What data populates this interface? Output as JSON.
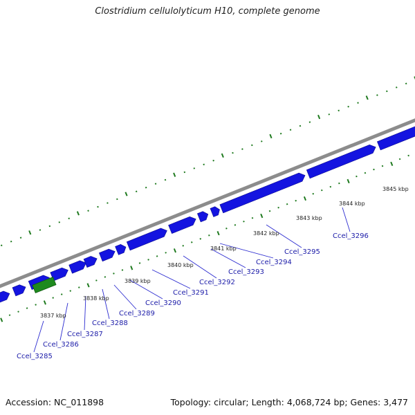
{
  "header": {
    "title": "Clostridium cellulolyticum H10, complete genome"
  },
  "footer": {
    "accession": "Accession: NC_011898",
    "stats": "Topology: circular; Length: 4,068,724 bp; Genes: 3,477"
  },
  "colors": {
    "backbone": "#8c8c8c",
    "gene_forward": "#1414e0",
    "gene_highlight": "#1e8a1e",
    "tick": "#1f7a1f",
    "leader": "#2b2bd0"
  },
  "ticks": [
    {
      "kbp": 3837,
      "label": "3837 kbp"
    },
    {
      "kbp": 3838,
      "label": "3838 kbp"
    },
    {
      "kbp": 3839,
      "label": "3839 kbp"
    },
    {
      "kbp": 3840,
      "label": "3840 kbp"
    },
    {
      "kbp": 3841,
      "label": "3841 kbp"
    },
    {
      "kbp": 3842,
      "label": "3842 kbp"
    },
    {
      "kbp": 3843,
      "label": "3843 kbp"
    },
    {
      "kbp": 3844,
      "label": "3844 kbp"
    },
    {
      "kbp": 3845,
      "label": "3845 kbp"
    }
  ],
  "genes": [
    {
      "locus": "Ccel_3285"
    },
    {
      "locus": "Ccel_3286"
    },
    {
      "locus": "Ccel_3287"
    },
    {
      "locus": "Ccel_3288"
    },
    {
      "locus": "Ccel_3289"
    },
    {
      "locus": "Ccel_3290"
    },
    {
      "locus": "Ccel_3291"
    },
    {
      "locus": "Ccel_3292"
    },
    {
      "locus": "Ccel_3293"
    },
    {
      "locus": "Ccel_3294"
    },
    {
      "locus": "Ccel_3295"
    },
    {
      "locus": "Ccel_3296"
    }
  ]
}
